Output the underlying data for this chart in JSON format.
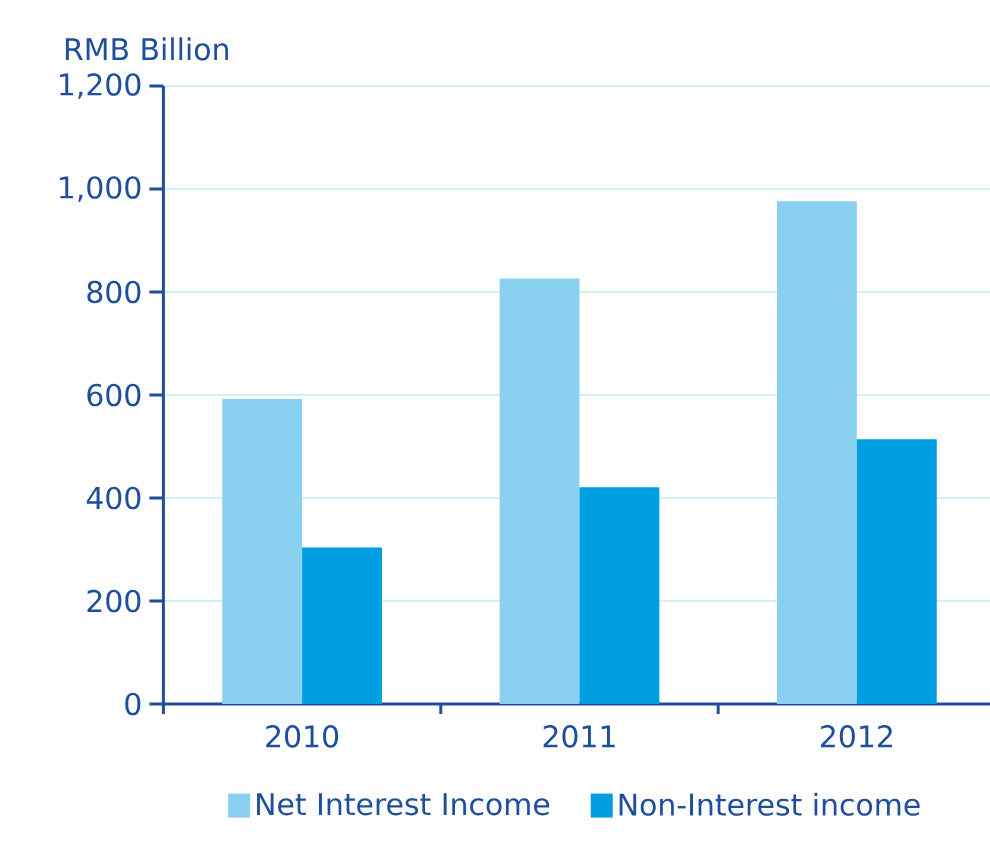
{
  "chart_data": {
    "type": "bar",
    "ylabel": "RMB Billion",
    "categories": [
      "2010",
      "2011",
      "2012"
    ],
    "series": [
      {
        "name": "Net Interest Income",
        "color": "#8ad1f1",
        "values": [
          592,
          826,
          976
        ]
      },
      {
        "name": "Non-Interest income",
        "color": "#009fe3",
        "values": [
          304,
          421,
          514
        ]
      }
    ],
    "ylim": [
      0,
      1200
    ],
    "yticks": [
      0,
      200,
      400,
      600,
      800,
      {
        "value": 1000,
        "label": "1,000"
      },
      {
        "value": 1200,
        "label": "1,200"
      }
    ],
    "grid": "y",
    "legend": "bottom"
  }
}
